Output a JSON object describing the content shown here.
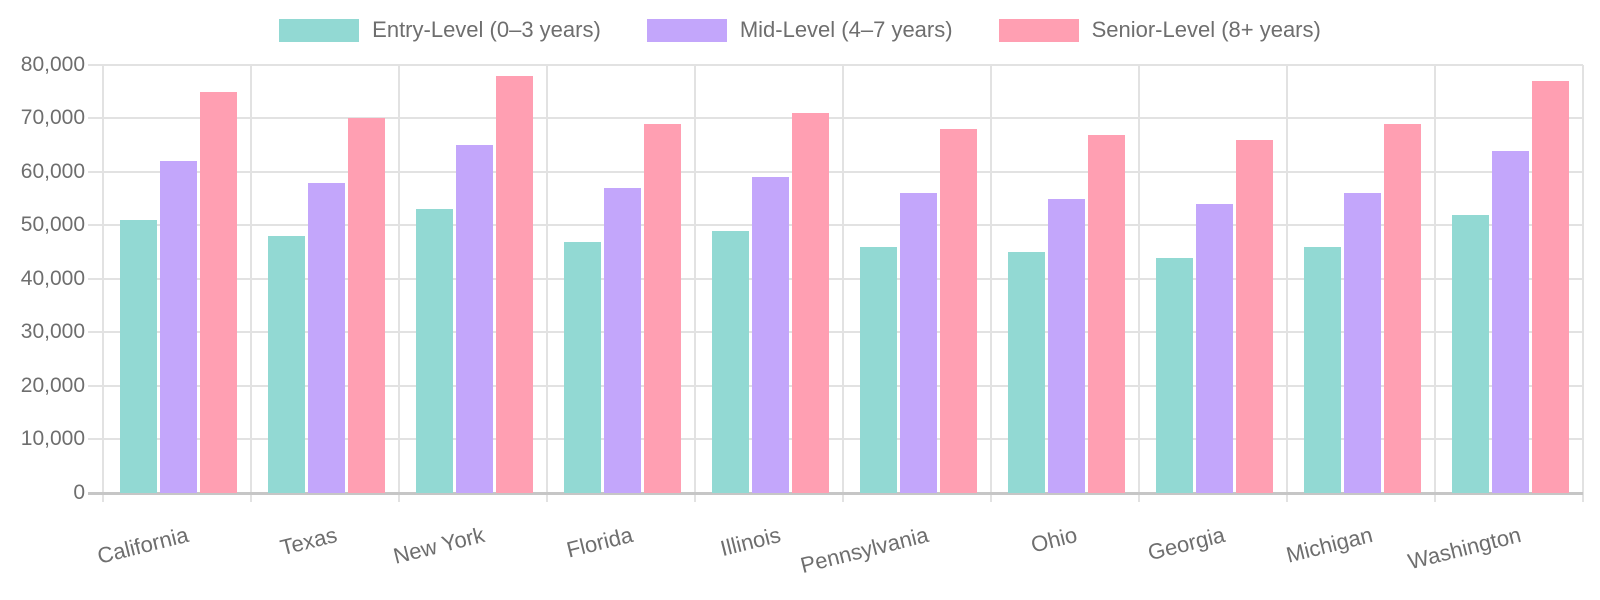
{
  "chart_data": {
    "type": "bar",
    "categories": [
      "California",
      "Texas",
      "New York",
      "Florida",
      "Illinois",
      "Pennsylvania",
      "Ohio",
      "Georgia",
      "Michigan",
      "Washington"
    ],
    "series": [
      {
        "key": "entry",
        "name": "Entry-Level (0–3 years)",
        "color": "#92D9D3",
        "values": [
          51000,
          48000,
          53000,
          47000,
          49000,
          46000,
          45000,
          44000,
          46000,
          52000
        ]
      },
      {
        "key": "mid",
        "name": "Mid-Level (4–7 years)",
        "color": "#C3A6FB",
        "values": [
          62000,
          58000,
          65000,
          57000,
          59000,
          56000,
          55000,
          54000,
          56000,
          64000
        ]
      },
      {
        "key": "senior",
        "name": "Senior-Level (8+ years)",
        "color": "#FF9FB2",
        "values": [
          75000,
          70000,
          78000,
          69000,
          71000,
          68000,
          67000,
          66000,
          69000,
          77000
        ]
      }
    ],
    "ylim": [
      0,
      80000
    ],
    "ytick_step": 10000,
    "ytick_labels": [
      "0",
      "10,000",
      "20,000",
      "30,000",
      "40,000",
      "50,000",
      "60,000",
      "70,000",
      "80,000"
    ],
    "grid": true,
    "legend_position": "top"
  },
  "colors": {
    "background": "#FFFFFF",
    "grid": "#E2E2E2",
    "axis_line": "#C6C6C6",
    "axis_text": "#6E6E6E"
  }
}
